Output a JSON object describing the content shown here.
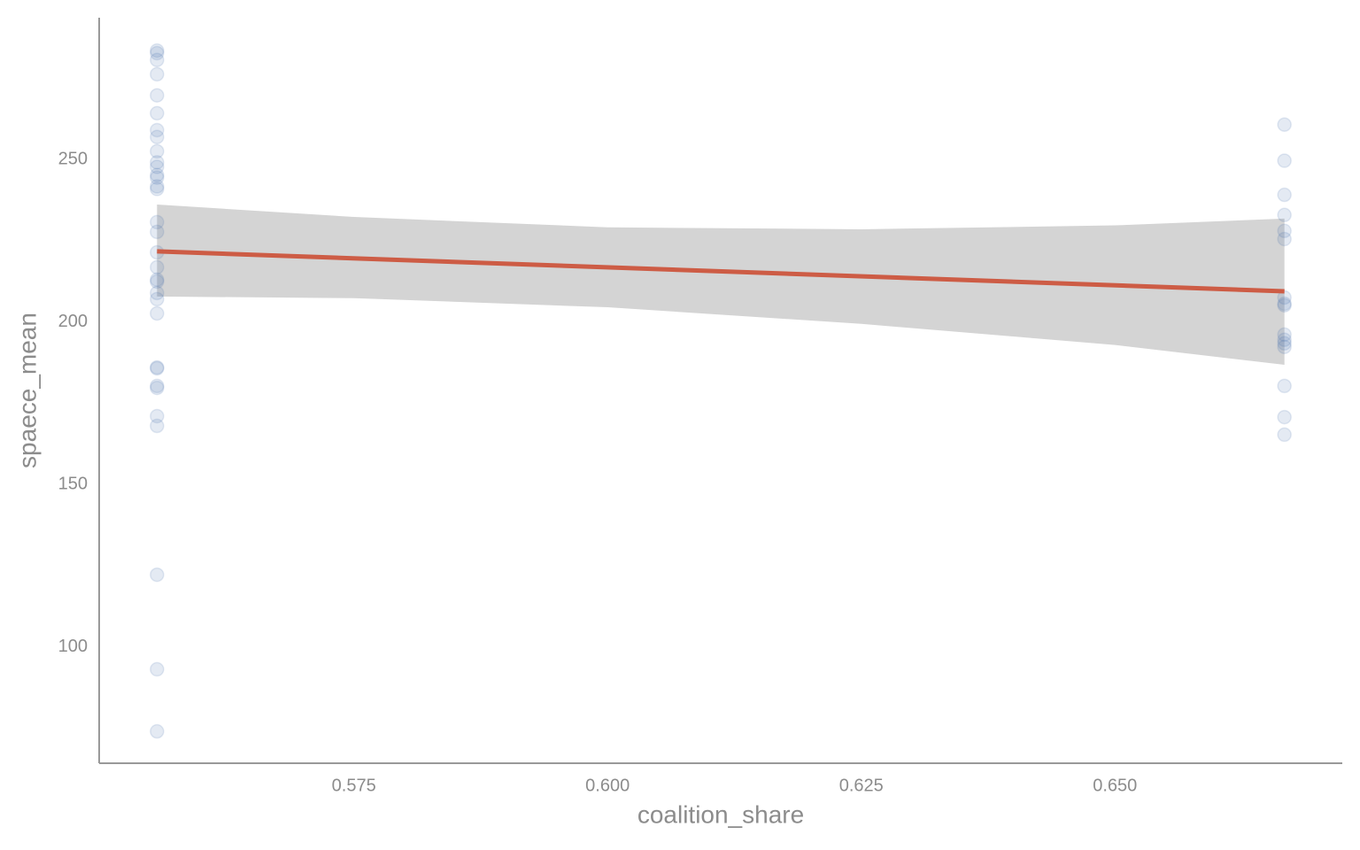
{
  "chart_data": {
    "type": "scatter",
    "x_label": "coalition_share",
    "y_label": "spaece_mean",
    "xlim": [
      0.5499,
      0.6724
    ],
    "ylim": [
      64.3,
      293.7
    ],
    "xticks": [
      {
        "value": 0.575,
        "label": "0.575"
      },
      {
        "value": 0.6,
        "label": "0.600"
      },
      {
        "value": 0.625,
        "label": "0.625"
      },
      {
        "value": 0.65,
        "label": "0.650"
      }
    ],
    "yticks": [
      100,
      150,
      200,
      250
    ],
    "points": {
      "color": "#4c72b0",
      "alpha": 0.15,
      "x": [
        0.5556,
        0.5556,
        0.5556,
        0.5556,
        0.5556,
        0.5556,
        0.5556,
        0.5556,
        0.5556,
        0.5556,
        0.5556,
        0.5556,
        0.5556,
        0.5556,
        0.5556,
        0.5556,
        0.5556,
        0.5556,
        0.5556,
        0.5556,
        0.5556,
        0.5556,
        0.5556,
        0.5556,
        0.5556,
        0.5556,
        0.5556,
        0.5556,
        0.5556,
        0.5556,
        0.5556,
        0.5556,
        0.5556,
        0.6667,
        0.6667,
        0.6667,
        0.6667,
        0.6667,
        0.6667,
        0.6667,
        0.6667,
        0.6667,
        0.6667,
        0.6667,
        0.6667,
        0.6667,
        0.6667,
        0.6667,
        0.6667
      ],
      "y": [
        283.6,
        282.8,
        280.7,
        276.3,
        269.8,
        264.3,
        259.1,
        257,
        252.6,
        249.2,
        247.8,
        245.3,
        244.5,
        241.8,
        241,
        230.8,
        227.8,
        221.5,
        216.9,
        213.1,
        212.5,
        209,
        207.1,
        202.7,
        186.1,
        185.8,
        180.4,
        179.8,
        171.1,
        168.1,
        122.3,
        93.2,
        74.1,
        260.8,
        249.7,
        239.2,
        233,
        228.1,
        225.6,
        207.6,
        205.7,
        205.2,
        196.2,
        194.6,
        193.5,
        192.4,
        180.4,
        170.8,
        165.4
      ]
    },
    "fit": {
      "color": "#cd5c45",
      "x": [
        0.5556,
        0.6667
      ],
      "y": [
        221.8,
        209.5
      ]
    },
    "band": {
      "color": "#d4d4d4",
      "x": [
        0.5556,
        0.575,
        0.6,
        0.625,
        0.65,
        0.6667
      ],
      "lower": [
        207.9,
        207.4,
        204.6,
        199.5,
        193.0,
        186.9
      ],
      "upper": [
        236.2,
        232.4,
        229.2,
        228.6,
        229.8,
        231.9
      ]
    }
  }
}
